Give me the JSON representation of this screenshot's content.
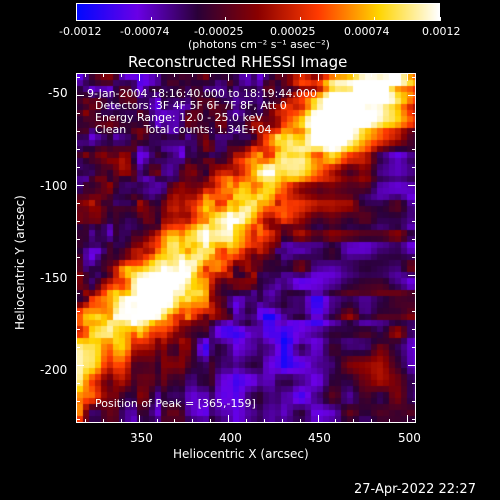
{
  "colorbar": {
    "tick_labels": [
      "-0.0012",
      "-0.00074",
      "-0.00025",
      "0.00025",
      "0.00074",
      "0.0012"
    ],
    "unit_label": "(photons cm⁻² s⁻¹ asec⁻²)",
    "colors": [
      "#0008ff",
      "#6a00e6",
      "#2a0038",
      "#8a0000",
      "#ff3a00",
      "#ffd400",
      "#ffffff"
    ]
  },
  "title": "Reconstructed RHESSI Image",
  "annotations": {
    "time_range": "9-Jan-2004 18:16:40.000 to 18:19:44.000",
    "detectors": "Detectors: 3F 4F 5F 6F 7F 8F, Att 0",
    "energy_range": "Energy Range: 12.0 - 25.0 keV",
    "clean": "Clean     Total counts: 1.34E+04",
    "peak": "Position of Peak = [365,-159]"
  },
  "axes": {
    "xlabel": "Heliocentric X (arcsec)",
    "ylabel": "Heliocentric Y (arcsec)",
    "x_ticks": [
      "350",
      "400",
      "450",
      "500"
    ],
    "y_ticks": [
      "-50",
      "-100",
      "-150",
      "-200"
    ]
  },
  "chart_data": {
    "type": "heatmap",
    "xlabel": "Heliocentric X (arcsec)",
    "ylabel": "Heliocentric Y (arcsec)",
    "xlim": [
      315,
      505
    ],
    "ylim": [
      -232,
      -38
    ],
    "clim": [
      -0.0012,
      0.0012
    ],
    "peak_position": [
      365,
      -159
    ]
  },
  "footer": {
    "date": "27-Apr-2022 22:27"
  }
}
